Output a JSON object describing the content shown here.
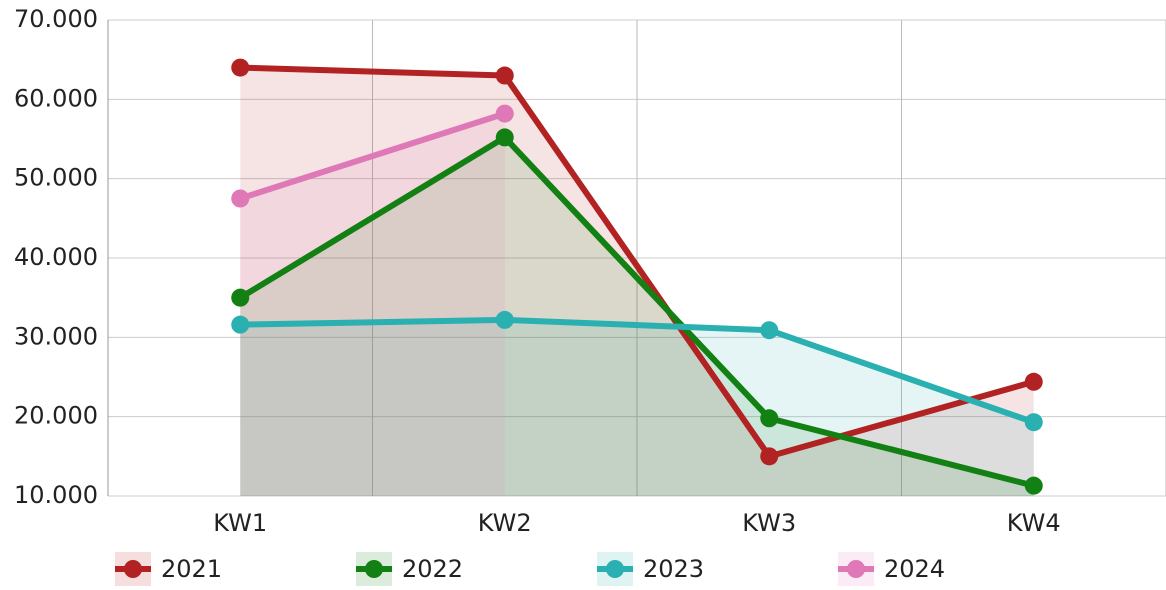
{
  "chart_data": {
    "type": "line",
    "categories": [
      "KW1",
      "KW2",
      "KW3",
      "KW4"
    ],
    "series": [
      {
        "name": "2021",
        "color": "#b22222",
        "values": [
          64000,
          63000,
          15000,
          24400
        ]
      },
      {
        "name": "2022",
        "color": "#138013",
        "values": [
          35000,
          55200,
          19800,
          11300
        ]
      },
      {
        "name": "2023",
        "color": "#2ab0b0",
        "values": [
          31600,
          32200,
          30900,
          19300
        ]
      },
      {
        "name": "2024",
        "color": "#de78b6",
        "values": [
          47500,
          58200,
          null,
          null
        ]
      }
    ],
    "ylim": [
      10000,
      70000
    ],
    "yticks": [
      {
        "value": 10000,
        "label": "10.000"
      },
      {
        "value": 20000,
        "label": "20.000"
      },
      {
        "value": 30000,
        "label": "30.000"
      },
      {
        "value": 40000,
        "label": "40.000"
      },
      {
        "value": 50000,
        "label": "50.000"
      },
      {
        "value": 60000,
        "label": "60.000"
      },
      {
        "value": 70000,
        "label": "70.000"
      }
    ],
    "grid": true,
    "area": true,
    "legend": "bottom-left"
  }
}
